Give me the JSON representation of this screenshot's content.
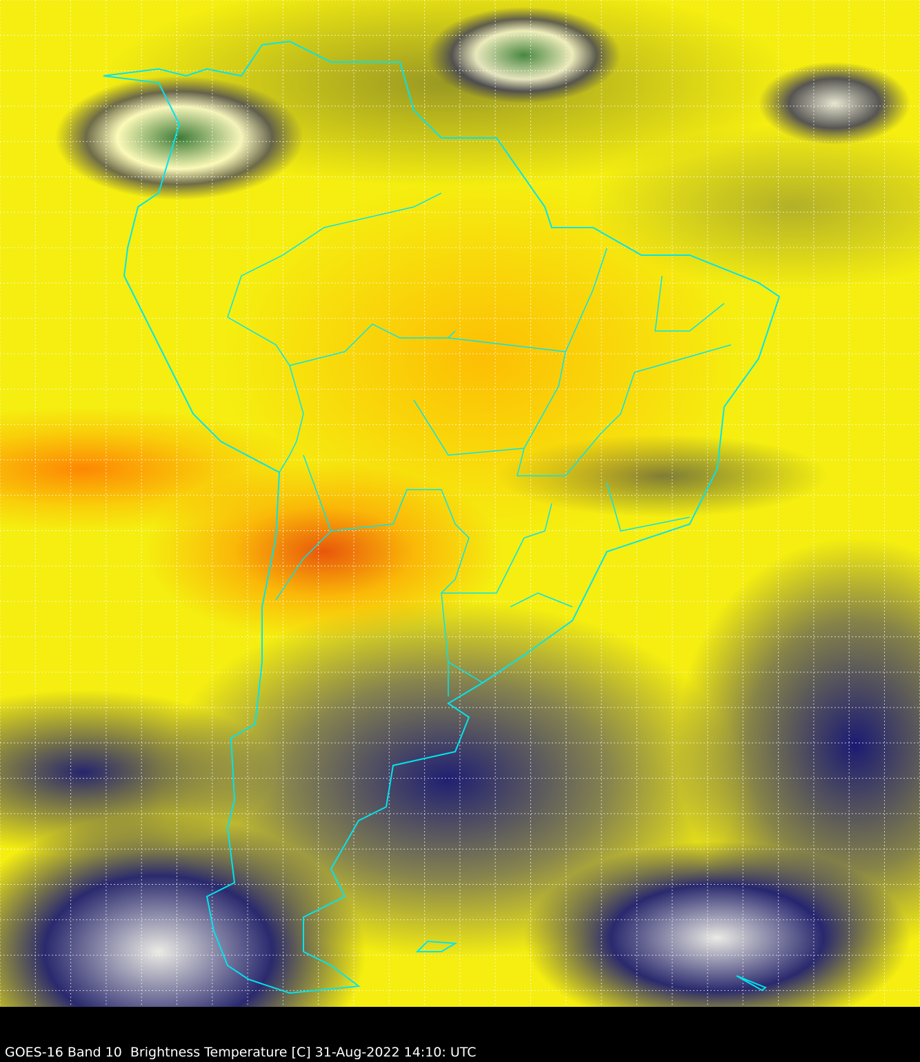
{
  "caption": "GOES-16 Band 10  Brightness Temperature [C] 31-Aug-2022 14:10: UTC",
  "map": {
    "type": "satellite-image",
    "region": "South America",
    "boundary_color": "#00e5ee",
    "grid": "dashed white lat/lon graticule",
    "colormap": [
      "#0a0a78",
      "#ffffff",
      "#3c8c50",
      "#808030",
      "#ffff00",
      "#ffa500",
      "#e03010"
    ]
  }
}
